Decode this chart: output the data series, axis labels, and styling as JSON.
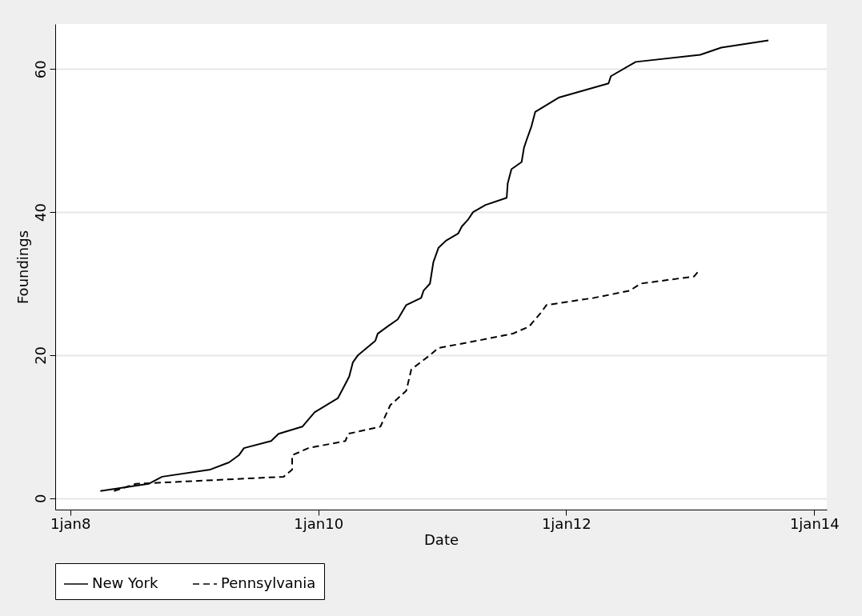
{
  "chart_data": {
    "type": "line",
    "xlabel": "Date",
    "ylabel": "Foundings",
    "xlim": [
      "2007-11-18",
      "2014-02-07"
    ],
    "ylim": [
      -1.6,
      66.3
    ],
    "xticks": [
      {
        "value": "2008-01-01",
        "label": "1jan8"
      },
      {
        "value": "2010-01-01",
        "label": "1jan10"
      },
      {
        "value": "2012-01-01",
        "label": "1jan12"
      },
      {
        "value": "2014-01-01",
        "label": "1jan14"
      }
    ],
    "yticks": [
      0,
      20,
      40,
      60
    ],
    "grid": "y",
    "legend": "bottom",
    "marker": "none",
    "series": [
      {
        "name": "New York",
        "color": "#000000",
        "line_style": "solid",
        "x": [
          "2008-03-30",
          "2008-08-19",
          "2008-09-28",
          "2009-02-17",
          "2009-04-13",
          "2009-05-12",
          "2009-05-27",
          "2009-08-15",
          "2009-09-06",
          "2009-11-15",
          "2009-12-21",
          "2010-02-28",
          "2010-03-22",
          "2010-04-02",
          "2010-04-13",
          "2010-04-28",
          "2010-06-18",
          "2010-06-25",
          "2010-07-24",
          "2010-08-23",
          "2010-09-17",
          "2010-10-31",
          "2010-11-07",
          "2010-11-26",
          "2010-12-06",
          "2010-12-21",
          "2011-01-12",
          "2011-02-17",
          "2011-02-28",
          "2011-03-19",
          "2011-04-02",
          "2011-05-09",
          "2011-07-10",
          "2011-07-13",
          "2011-07-24",
          "2011-08-23",
          "2011-08-30",
          "2011-09-06",
          "2011-09-21",
          "2011-10-02",
          "2011-12-10",
          "2012-05-05",
          "2012-05-12",
          "2012-07-24",
          "2013-01-30",
          "2013-04-02",
          "2013-08-19"
        ],
        "values": [
          1,
          2,
          3,
          4,
          5,
          6,
          7,
          8,
          9,
          10,
          12,
          14,
          16,
          17,
          19,
          20,
          22,
          23,
          24,
          25,
          27,
          28,
          29,
          30,
          33,
          35,
          36,
          37,
          38,
          39,
          40,
          41,
          42,
          44,
          46,
          47,
          49,
          50,
          52,
          54,
          56,
          58,
          59,
          61,
          62,
          63,
          64
        ]
      },
      {
        "name": "Pennsylvania",
        "color": "#000000",
        "line_style": "dashed",
        "x": [
          "2008-05-09",
          "2008-07-13",
          "2009-09-21",
          "2009-10-16",
          "2009-10-16",
          "2009-12-03",
          "2010-03-22",
          "2010-03-30",
          "2010-07-03",
          "2010-08-01",
          "2010-09-17",
          "2010-10-02",
          "2010-11-26",
          "2010-12-21",
          "2011-04-13",
          "2011-07-28",
          "2011-09-14",
          "2011-10-02",
          "2011-10-20",
          "2011-11-04",
          "2012-03-22",
          "2012-07-06",
          "2012-08-08",
          "2013-01-12",
          "2013-01-30"
        ],
        "values": [
          1,
          2,
          3,
          4,
          6,
          7,
          8,
          9,
          10,
          13,
          15,
          18,
          20,
          21,
          22,
          23,
          24,
          25,
          26,
          27,
          28,
          29,
          30,
          31,
          32
        ]
      }
    ]
  }
}
